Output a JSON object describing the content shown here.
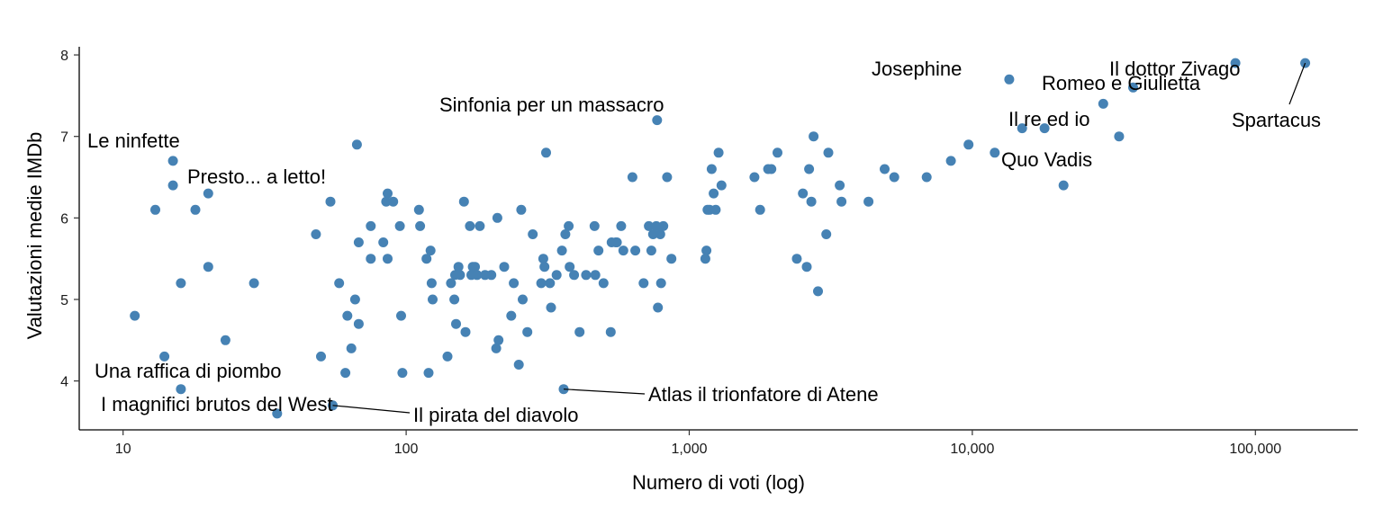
{
  "chart_data": {
    "type": "scatter",
    "xlabel": "Numero di voti (log)",
    "ylabel": "Valutazioni medie IMDb",
    "x_scale": "log10",
    "xlim": [
      7,
      230000
    ],
    "ylim": [
      3.4,
      8.1
    ],
    "x_ticks": [
      10,
      100,
      1000,
      10000,
      100000
    ],
    "x_tick_labels": [
      "10",
      "100",
      "1,000",
      "10,000",
      "100,000"
    ],
    "y_ticks": [
      4,
      5,
      6,
      7,
      8
    ],
    "y_tick_labels": [
      "4",
      "5",
      "6",
      "7",
      "8"
    ],
    "grid": false,
    "point_color": "#4682b4",
    "labelled_points": [
      {
        "label": "Le ninfette",
        "x": 15,
        "y": 6.7
      },
      {
        "label": "Presto... a letto!",
        "x": 20,
        "y": 6.3
      },
      {
        "label": "Una raffica di piombo",
        "x": 16,
        "y": 3.9
      },
      {
        "label": "I magnifici brutos del West",
        "x": 35,
        "y": 3.6
      },
      {
        "label": "Il pirata del diavolo",
        "x": 55,
        "y": 3.7
      },
      {
        "label": "Sinfonia per un massacro",
        "x": 770,
        "y": 7.2
      },
      {
        "label": "Atlas il trionfatore di Atene",
        "x": 360,
        "y": 3.9
      },
      {
        "label": "Josephine",
        "x": 13500,
        "y": 7.7
      },
      {
        "label": "Il dottor Zivago",
        "x": 85000,
        "y": 7.9
      },
      {
        "label": "Romeo e Giulietta",
        "x": 37000,
        "y": 7.6
      },
      {
        "label": "Il re ed io",
        "x": 15000,
        "y": 7.1
      },
      {
        "label": "Quo Vadis",
        "x": 21000,
        "y": 6.4
      },
      {
        "label": "Spartacus",
        "x": 150000,
        "y": 7.9
      }
    ],
    "points": [
      [
        11,
        4.8
      ],
      [
        13,
        6.1
      ],
      [
        14,
        4.3
      ],
      [
        15,
        6.4
      ],
      [
        16,
        5.2
      ],
      [
        18,
        6.1
      ],
      [
        20,
        5.4
      ],
      [
        23,
        4.5
      ],
      [
        29,
        5.2
      ],
      [
        48,
        5.8
      ],
      [
        50,
        4.3
      ],
      [
        54,
        6.2
      ],
      [
        58,
        5.2
      ],
      [
        61,
        4.1
      ],
      [
        62,
        4.8
      ],
      [
        64,
        4.4
      ],
      [
        66,
        5.0
      ],
      [
        67,
        6.9
      ],
      [
        68,
        5.7
      ],
      [
        68,
        4.7
      ],
      [
        75,
        5.9
      ],
      [
        75,
        5.5
      ],
      [
        83,
        5.7
      ],
      [
        85,
        6.2
      ],
      [
        86,
        6.3
      ],
      [
        86,
        5.5
      ],
      [
        90,
        6.2
      ],
      [
        95,
        5.9
      ],
      [
        96,
        4.8
      ],
      [
        97,
        4.1
      ],
      [
        111,
        6.1
      ],
      [
        112,
        5.9
      ],
      [
        118,
        5.5
      ],
      [
        120,
        4.1
      ],
      [
        122,
        5.6
      ],
      [
        123,
        5.2
      ],
      [
        124,
        5.0
      ],
      [
        140,
        4.3
      ],
      [
        144,
        5.2
      ],
      [
        148,
        5.0
      ],
      [
        149,
        5.3
      ],
      [
        150,
        4.7
      ],
      [
        153,
        5.4
      ],
      [
        155,
        5.3
      ],
      [
        160,
        6.2
      ],
      [
        162,
        4.6
      ],
      [
        168,
        5.9
      ],
      [
        170,
        5.3
      ],
      [
        172,
        5.4
      ],
      [
        175,
        5.4
      ],
      [
        178,
        5.3
      ],
      [
        182,
        5.9
      ],
      [
        190,
        5.3
      ],
      [
        200,
        5.3
      ],
      [
        208,
        4.4
      ],
      [
        210,
        6.0
      ],
      [
        212,
        4.5
      ],
      [
        222,
        5.4
      ],
      [
        235,
        4.8
      ],
      [
        240,
        5.2
      ],
      [
        250,
        4.2
      ],
      [
        255,
        6.1
      ],
      [
        258,
        5.0
      ],
      [
        268,
        4.6
      ],
      [
        280,
        5.8
      ],
      [
        300,
        5.2
      ],
      [
        305,
        5.5
      ],
      [
        308,
        5.4
      ],
      [
        312,
        6.8
      ],
      [
        322,
        5.2
      ],
      [
        325,
        4.9
      ],
      [
        340,
        5.3
      ],
      [
        355,
        5.6
      ],
      [
        365,
        5.8
      ],
      [
        375,
        5.9
      ],
      [
        378,
        5.4
      ],
      [
        392,
        5.3
      ],
      [
        410,
        4.6
      ],
      [
        432,
        5.3
      ],
      [
        463,
        5.9
      ],
      [
        466,
        5.3
      ],
      [
        478,
        5.6
      ],
      [
        498,
        5.2
      ],
      [
        528,
        4.6
      ],
      [
        532,
        5.7
      ],
      [
        550,
        5.7
      ],
      [
        555,
        5.7
      ],
      [
        575,
        5.9
      ],
      [
        585,
        5.6
      ],
      [
        630,
        6.5
      ],
      [
        645,
        5.6
      ],
      [
        690,
        5.2
      ],
      [
        720,
        5.9
      ],
      [
        735,
        5.6
      ],
      [
        745,
        5.8
      ],
      [
        765,
        5.9
      ],
      [
        775,
        4.9
      ],
      [
        790,
        5.8
      ],
      [
        795,
        5.2
      ],
      [
        810,
        5.9
      ],
      [
        835,
        6.5
      ],
      [
        865,
        5.5
      ],
      [
        1140,
        5.5
      ],
      [
        1150,
        5.6
      ],
      [
        1160,
        6.1
      ],
      [
        1180,
        6.1
      ],
      [
        1200,
        6.6
      ],
      [
        1220,
        6.3
      ],
      [
        1240,
        6.1
      ],
      [
        1270,
        6.8
      ],
      [
        1300,
        6.4
      ],
      [
        1700,
        6.5
      ],
      [
        1780,
        6.1
      ],
      [
        1900,
        6.6
      ],
      [
        1950,
        6.6
      ],
      [
        2050,
        6.8
      ],
      [
        2400,
        5.5
      ],
      [
        2520,
        6.3
      ],
      [
        2600,
        5.4
      ],
      [
        2650,
        6.6
      ],
      [
        2700,
        6.2
      ],
      [
        2750,
        7.0
      ],
      [
        2850,
        5.1
      ],
      [
        3050,
        5.8
      ],
      [
        3100,
        6.8
      ],
      [
        3400,
        6.4
      ],
      [
        3450,
        6.2
      ],
      [
        4300,
        6.2
      ],
      [
        4900,
        6.6
      ],
      [
        5300,
        6.5
      ],
      [
        6900,
        6.5
      ],
      [
        8400,
        6.7
      ],
      [
        9700,
        6.9
      ],
      [
        12000,
        6.8
      ],
      [
        18000,
        7.1
      ],
      [
        29000,
        7.4
      ],
      [
        33000,
        7.0
      ]
    ]
  }
}
